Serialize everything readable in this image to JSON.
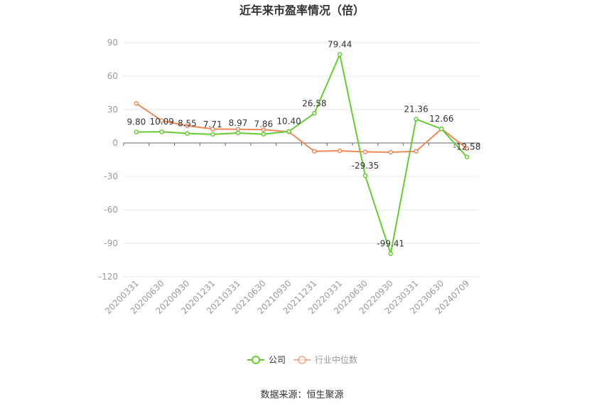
{
  "chart_data": {
    "type": "line",
    "title": "近年来市盈率情况（倍）",
    "categories": [
      "20200331",
      "20200630",
      "20200930",
      "20201231",
      "20210331",
      "20210630",
      "20210930",
      "20211231",
      "20220331",
      "20220630",
      "20220930",
      "20230331",
      "20230630",
      "20240709"
    ],
    "series": [
      {
        "name": "公司",
        "color": "#66cc33",
        "values": [
          9.8,
          10.09,
          8.55,
          7.71,
          8.97,
          7.86,
          10.4,
          26.58,
          79.44,
          -29.35,
          -99.41,
          21.36,
          12.66,
          -12.58
        ],
        "labels": [
          "9.80",
          "10.09",
          "8.55",
          "7.71",
          "8.97",
          "7.86",
          "10.40",
          "26.58",
          "79.44",
          "-29.35",
          "-99.41",
          "21.36",
          "12.66",
          "-12.58"
        ]
      },
      {
        "name": "行业中位数",
        "color": "#f0885a",
        "values": [
          35.5,
          20.0,
          15.5,
          12.5,
          12.3,
          12.0,
          10.0,
          -7.5,
          -7.0,
          -8.0,
          -8.3,
          -7.5,
          12.66,
          -5.0
        ]
      }
    ],
    "yticks": [
      "90",
      "60",
      "30",
      "0",
      "-30",
      "-60",
      "-90",
      "-120"
    ],
    "ylim": [
      -120,
      90
    ],
    "grid": true,
    "legend_position": "bottom"
  },
  "source_text": "数据来源：恒生聚源"
}
